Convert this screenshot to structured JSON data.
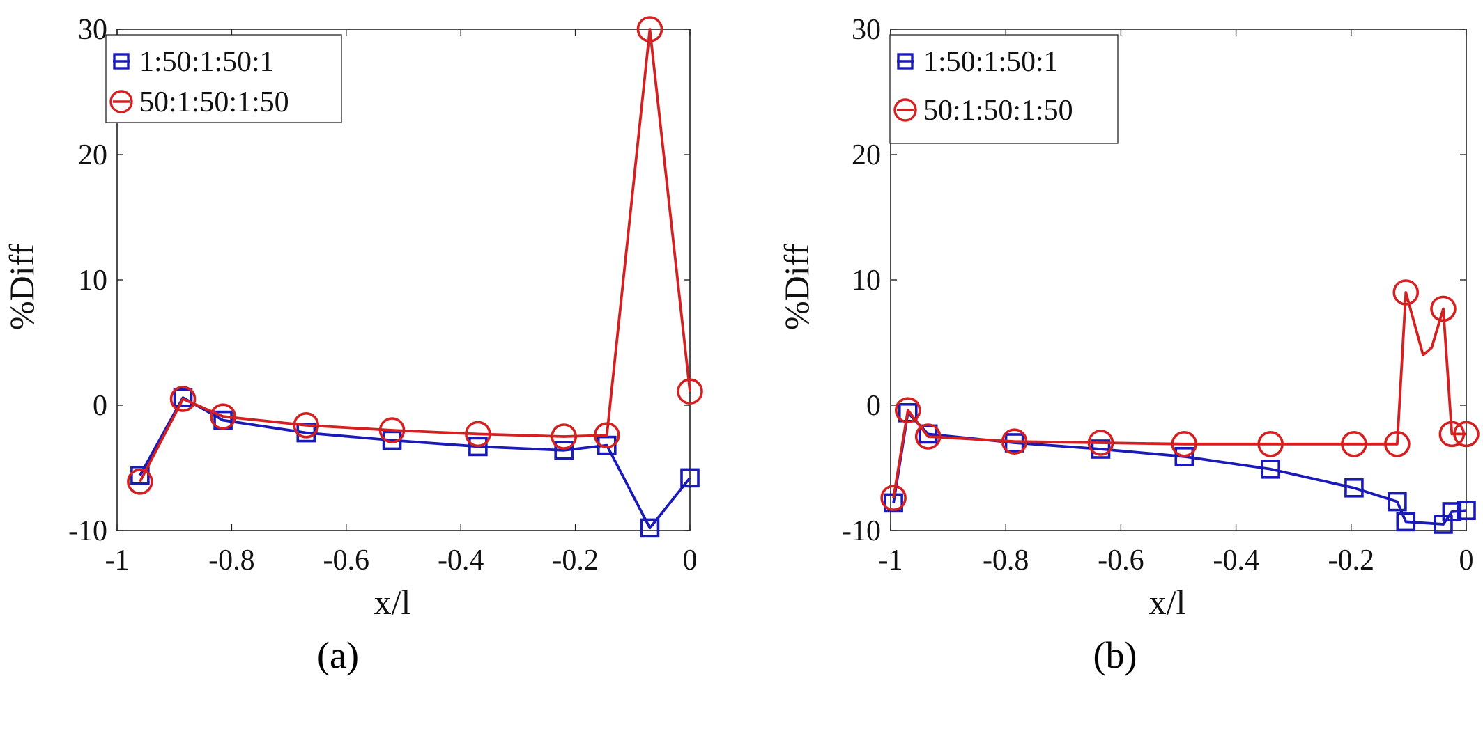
{
  "chart_data": [
    {
      "type": "line",
      "panel_label": "(a)",
      "xlabel": "x/l",
      "ylabel": "%Diff",
      "xlim": [
        -1,
        0
      ],
      "ylim": [
        -10,
        30
      ],
      "xticks": [
        -1,
        -0.8,
        -0.6,
        -0.4,
        -0.2,
        0
      ],
      "yticks": [
        -10,
        0,
        10,
        20,
        30
      ],
      "xtick_labels": [
        "-1",
        "-0.8",
        "-0.6",
        "-0.4",
        "-0.2",
        "0"
      ],
      "ytick_labels": [
        "-10",
        "0",
        "10",
        "20",
        "30"
      ],
      "legend_position": "top-left",
      "series": [
        {
          "name": "1:50:1:50:1",
          "marker": "square",
          "color": "#1a1ab8",
          "x": [
            -0.96,
            -0.885,
            -0.815,
            -0.67,
            -0.52,
            -0.37,
            -0.22,
            -0.145,
            -0.07,
            0.0
          ],
          "y": [
            -5.6,
            0.6,
            -1.2,
            -2.2,
            -2.8,
            -3.3,
            -3.6,
            -3.2,
            -9.8,
            -5.8
          ]
        },
        {
          "name": "50:1:50:1:50",
          "marker": "circle",
          "color": "#d42020",
          "x": [
            -0.96,
            -0.885,
            -0.815,
            -0.67,
            -0.52,
            -0.37,
            -0.22,
            -0.145,
            -0.07,
            0.0
          ],
          "y": [
            -6.1,
            0.5,
            -0.9,
            -1.6,
            -2.0,
            -2.3,
            -2.5,
            -2.4,
            30.0,
            1.1
          ]
        }
      ]
    },
    {
      "type": "line",
      "panel_label": "(b)",
      "xlabel": "x/l",
      "ylabel": "%Diff",
      "xlim": [
        -1,
        0
      ],
      "ylim": [
        -10,
        30
      ],
      "xticks": [
        -1,
        -0.8,
        -0.6,
        -0.4,
        -0.2,
        0
      ],
      "yticks": [
        -10,
        0,
        10,
        20,
        30
      ],
      "xtick_labels": [
        "-1",
        "-0.8",
        "-0.6",
        "-0.4",
        "-0.2",
        "0"
      ],
      "ytick_labels": [
        "-10",
        "0",
        "10",
        "20",
        "30"
      ],
      "legend_position": "top-left",
      "series": [
        {
          "name": "1:50:1:50:1",
          "marker": "square",
          "color": "#1a1ab8",
          "x": [
            -0.995,
            -0.97,
            -0.935,
            -0.785,
            -0.635,
            -0.49,
            -0.34,
            -0.195,
            -0.12,
            -0.105,
            -0.04,
            -0.025,
            0.0
          ],
          "y": [
            -7.8,
            -0.6,
            -2.3,
            -3.0,
            -3.5,
            -4.1,
            -5.1,
            -6.6,
            -7.7,
            -9.3,
            -9.5,
            -8.5,
            -8.4
          ],
          "markers_at": [
            0,
            1,
            2,
            3,
            4,
            5,
            6,
            7,
            8,
            9,
            10,
            11,
            12
          ]
        },
        {
          "name": "50:1:50:1:50",
          "marker": "circle",
          "color": "#d42020",
          "x": [
            -0.995,
            -0.97,
            -0.935,
            -0.785,
            -0.635,
            -0.49,
            -0.34,
            -0.195,
            -0.12,
            -0.105,
            -0.075,
            -0.06,
            -0.04,
            -0.025,
            0.0
          ],
          "y": [
            -7.4,
            -0.4,
            -2.5,
            -2.9,
            -3.0,
            -3.1,
            -3.1,
            -3.1,
            -3.1,
            9.0,
            4.0,
            4.6,
            7.7,
            -2.3,
            -2.3
          ],
          "markers_at": [
            0,
            1,
            2,
            3,
            4,
            5,
            6,
            7,
            8,
            9,
            12,
            13,
            14
          ]
        }
      ]
    }
  ]
}
